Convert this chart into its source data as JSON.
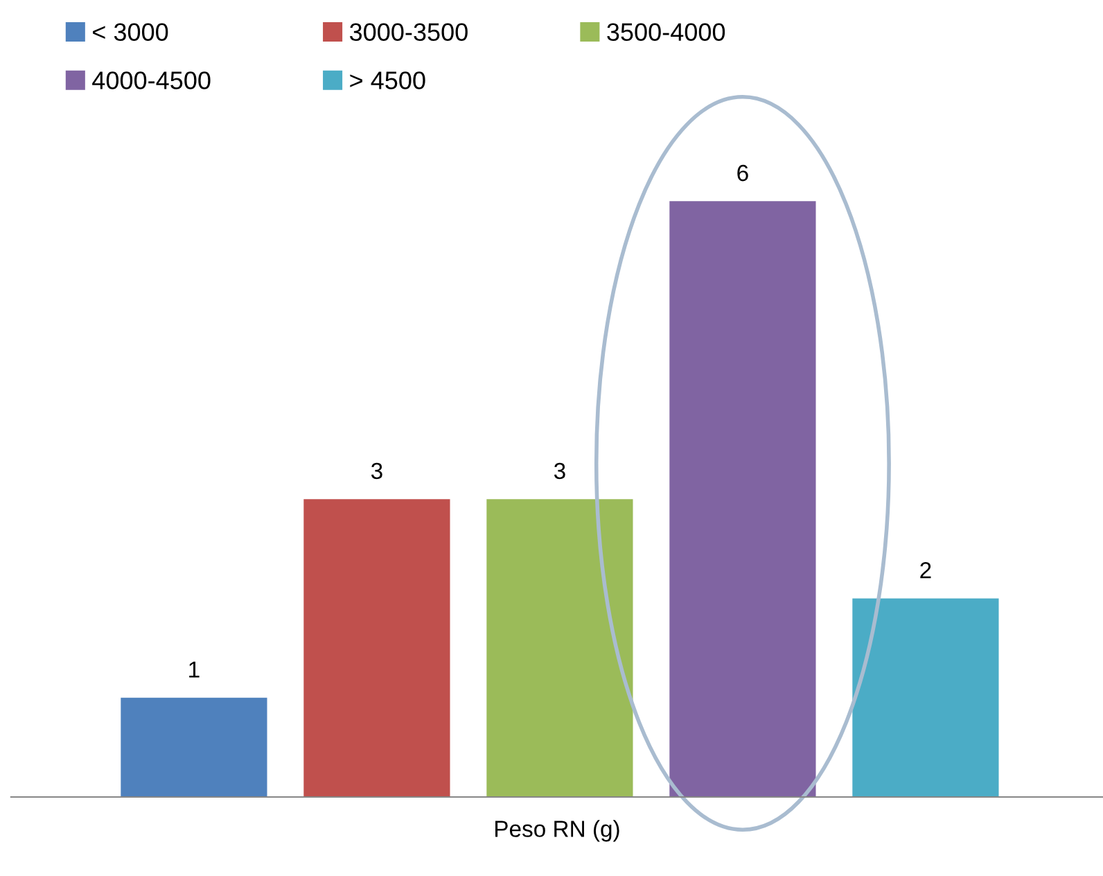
{
  "chart_data": {
    "type": "bar",
    "xlabel": "Peso RN (g)",
    "categories": [
      null
    ],
    "data_labels": true,
    "legend": "top left",
    "series": [
      {
        "name": "< 3000",
        "color": "#4f81bd",
        "values": [
          1
        ]
      },
      {
        "name": "3000-3500",
        "color": "#c0504d",
        "values": [
          3
        ]
      },
      {
        "name": "3500-4000",
        "color": "#9bbb59",
        "values": [
          3
        ]
      },
      {
        "name": "4000-4500",
        "color": "#8064a2",
        "values": [
          6
        ]
      },
      {
        "name": "> 4500",
        "color": "#4bacc6",
        "values": [
          2
        ]
      }
    ]
  }
}
